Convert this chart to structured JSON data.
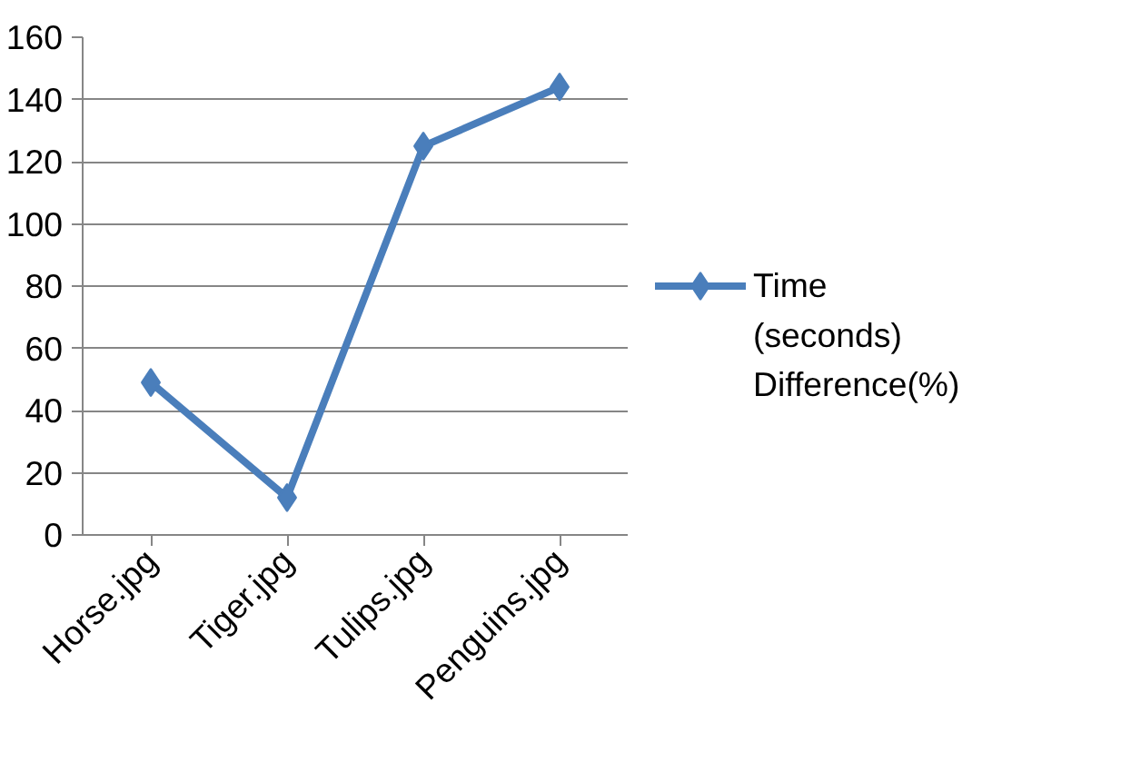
{
  "chart_data": {
    "type": "line",
    "categories": [
      "Horse.jpg",
      "Tiger.jpg",
      "Tulips.jpg",
      "Penguins.jpg"
    ],
    "series": [
      {
        "name": "Time (seconds) Difference(%)",
        "color": "#4a7ebb",
        "values": [
          49,
          12,
          125,
          144
        ]
      }
    ],
    "ylim": [
      0,
      160
    ],
    "yticks": [
      0,
      20,
      40,
      60,
      80,
      100,
      120,
      140,
      160
    ],
    "grid": "y",
    "legend": "right",
    "marker": "diamond",
    "line_style": "solid"
  }
}
